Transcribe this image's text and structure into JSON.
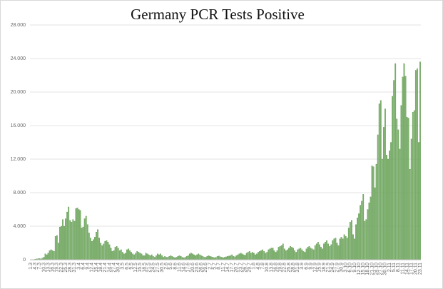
{
  "chart_data": {
    "type": "bar",
    "title": "Germany PCR Tests Positive",
    "color": "#7fb36e",
    "ylim": [
      0,
      28000
    ],
    "yticks": [
      {
        "value": 0,
        "label": "0"
      },
      {
        "value": 4000,
        "label": "4.000"
      },
      {
        "value": 8000,
        "label": "8.000"
      },
      {
        "value": 12000,
        "label": "12.000"
      },
      {
        "value": 16000,
        "label": "16.000"
      },
      {
        "value": 20000,
        "label": "20.000"
      },
      {
        "value": 24000,
        "label": "24.000"
      },
      {
        "value": 28000,
        "label": "28.000"
      }
    ],
    "grid": true,
    "categories": [
      "1.3",
      null,
      null,
      "4.3",
      null,
      null,
      "7.3",
      null,
      null,
      "10.3",
      null,
      null,
      "13.3",
      null,
      null,
      "16.3",
      null,
      null,
      "19.3",
      null,
      null,
      "22.3",
      null,
      null,
      "25.3",
      null,
      null,
      "28.3",
      null,
      null,
      "31.3",
      null,
      null,
      "3.4",
      null,
      null,
      "6.4",
      null,
      null,
      "9.4",
      null,
      null,
      "12.4",
      null,
      null,
      "15.4",
      null,
      null,
      "18.4",
      null,
      null,
      "21.4",
      null,
      null,
      "24.4",
      null,
      null,
      "27.4",
      null,
      null,
      "30.4",
      null,
      null,
      "3.5",
      null,
      null,
      "6.5",
      null,
      null,
      "9.5",
      null,
      null,
      "12.5",
      null,
      null,
      "15.5",
      null,
      null,
      "18.5",
      null,
      null,
      "21.5",
      null,
      null,
      "24.5",
      null,
      null,
      "27.5",
      null,
      null,
      "30.5",
      null,
      null,
      "2.6",
      null,
      null,
      "5.6",
      null,
      null,
      "8.6",
      null,
      null,
      "11.6",
      null,
      null,
      "14.6",
      null,
      null,
      "17.6",
      null,
      null,
      "20.6",
      null,
      null,
      "23.6",
      null,
      null,
      "26.6",
      null,
      null,
      "29.6",
      null,
      null,
      "2.7",
      null,
      null,
      "5.7",
      null,
      null,
      "8.7",
      null,
      null,
      "11.7",
      null,
      null,
      "14.7",
      null,
      null,
      "17.7",
      null,
      null,
      "20.7",
      null,
      null,
      "23.7",
      null,
      null,
      "26.7",
      null,
      null,
      "29.7",
      null,
      null,
      "1.8",
      null,
      null,
      "4.8",
      null,
      null,
      "7.8",
      null,
      null,
      "10.8",
      null,
      null,
      "13.8",
      null,
      null,
      "16.8",
      null,
      null,
      "19.8",
      null,
      null,
      "22.8",
      null,
      null,
      "25.8",
      null,
      null,
      "28.8",
      null,
      null,
      "31.8",
      null,
      null,
      "3.9",
      null,
      null,
      "6.9",
      null,
      null,
      "9.9",
      null,
      null,
      "12.9",
      null,
      null,
      "15.9",
      null,
      null,
      "18.9",
      null,
      null,
      "21.9",
      null,
      null,
      "24.9",
      null,
      null,
      "27.9",
      null,
      null,
      "30.9",
      null,
      null,
      "3.10",
      null,
      null,
      "6.10",
      null,
      null,
      "9.10",
      null,
      null,
      "12.10",
      null,
      null,
      "15.10",
      null,
      null,
      "18.10",
      null,
      null,
      "21.10",
      null,
      null,
      "24.10",
      null,
      null,
      "27.10",
      null,
      null,
      "30.10",
      null,
      null,
      "2.11",
      null,
      null,
      "5.11",
      null,
      null,
      "8.11",
      null,
      null,
      "11.11",
      null,
      null,
      "14.11",
      null,
      null,
      "17.11",
      null,
      null,
      "20.11",
      null,
      null,
      "23.11"
    ],
    "values": [
      0,
      10,
      30,
      60,
      100,
      120,
      150,
      100,
      200,
      300,
      700,
      600,
      800,
      1100,
      1200,
      1100,
      1000,
      2800,
      2900,
      2000,
      3900,
      4000,
      4800,
      4000,
      4900,
      5700,
      6300,
      4700,
      4500,
      4800,
      4600,
      6100,
      6200,
      6000,
      5900,
      3800,
      3900,
      4900,
      5200,
      4200,
      3200,
      2600,
      2200,
      2400,
      2700,
      3300,
      3600,
      2600,
      2000,
      1700,
      1900,
      2200,
      2300,
      2100,
      1800,
      1400,
      1000,
      1100,
      1500,
      1600,
      1400,
      1100,
      1200,
      900,
      700,
      800,
      1200,
      1300,
      1100,
      900,
      700,
      600,
      800,
      1000,
      900,
      800,
      700,
      500,
      500,
      800,
      700,
      600,
      500,
      600,
      400,
      300,
      500,
      700,
      600,
      700,
      500,
      300,
      400,
      300,
      300,
      400,
      500,
      400,
      300,
      250,
      300,
      400,
      500,
      400,
      300,
      250,
      300,
      400,
      500,
      700,
      800,
      700,
      600,
      500,
      600,
      700,
      600,
      500,
      400,
      300,
      300,
      400,
      500,
      400,
      350,
      300,
      250,
      300,
      400,
      450,
      350,
      300,
      250,
      300,
      350,
      400,
      450,
      500,
      600,
      400,
      350,
      500,
      600,
      700,
      800,
      700,
      600,
      550,
      800,
      900,
      1000,
      800,
      900,
      800,
      600,
      700,
      900,
      1000,
      1100,
      1200,
      1000,
      800,
      900,
      1200,
      1300,
      1400,
      1400,
      1100,
      900,
      1100,
      1500,
      1600,
      1700,
      1900,
      1300,
      1100,
      1200,
      1400,
      1600,
      1500,
      1400,
      1100,
      900,
      1200,
      1300,
      1400,
      1200,
      1000,
      900,
      1300,
      1500,
      1600,
      1400,
      1300,
      1200,
      1700,
      1900,
      2100,
      1800,
      1500,
      1300,
      1900,
      2100,
      2300,
      1900,
      1600,
      1800,
      2300,
      2500,
      2600,
      2000,
      1700,
      2500,
      2700,
      2500,
      3000,
      2800,
      2600,
      3800,
      4500,
      4700,
      3000,
      2500,
      4200,
      5000,
      5500,
      6500,
      7000,
      7800,
      4600,
      4800,
      6000,
      6800,
      7500,
      11200,
      11100,
      8600,
      11400,
      14900,
      18600,
      19000,
      12000,
      15800,
      18000,
      12500,
      12000,
      13000,
      14000,
      19500,
      21400,
      23400,
      16800,
      15500,
      13200,
      18400,
      21800,
      23400,
      21900,
      17000,
      16900,
      10800,
      14400,
      17600,
      17800,
      22600,
      22800,
      14000,
      23600
    ]
  }
}
